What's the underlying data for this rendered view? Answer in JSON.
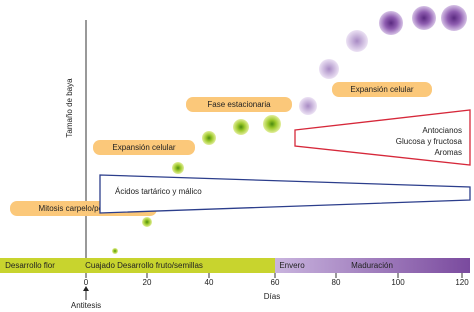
{
  "axis": {
    "y_label": "Tamaño de baya",
    "x_label": "Días",
    "ticks": [
      "0",
      "20",
      "40",
      "60",
      "80",
      "100",
      "120"
    ],
    "marker": "Antitesis"
  },
  "phases": [
    "Desarrollo flor",
    "Cuajado",
    "Desarrollo fruto/semillas",
    "Envero",
    "Maduración"
  ],
  "stages": [
    "Mitosis carpelo/pericarpo",
    "Expansión celular",
    "Fase estacionaria",
    "Expansión celular"
  ],
  "acids": "Ácidos tartárico y málico",
  "accumulation": [
    "Antocianos",
    "Glucosa y fructosa",
    "Aromas"
  ]
}
